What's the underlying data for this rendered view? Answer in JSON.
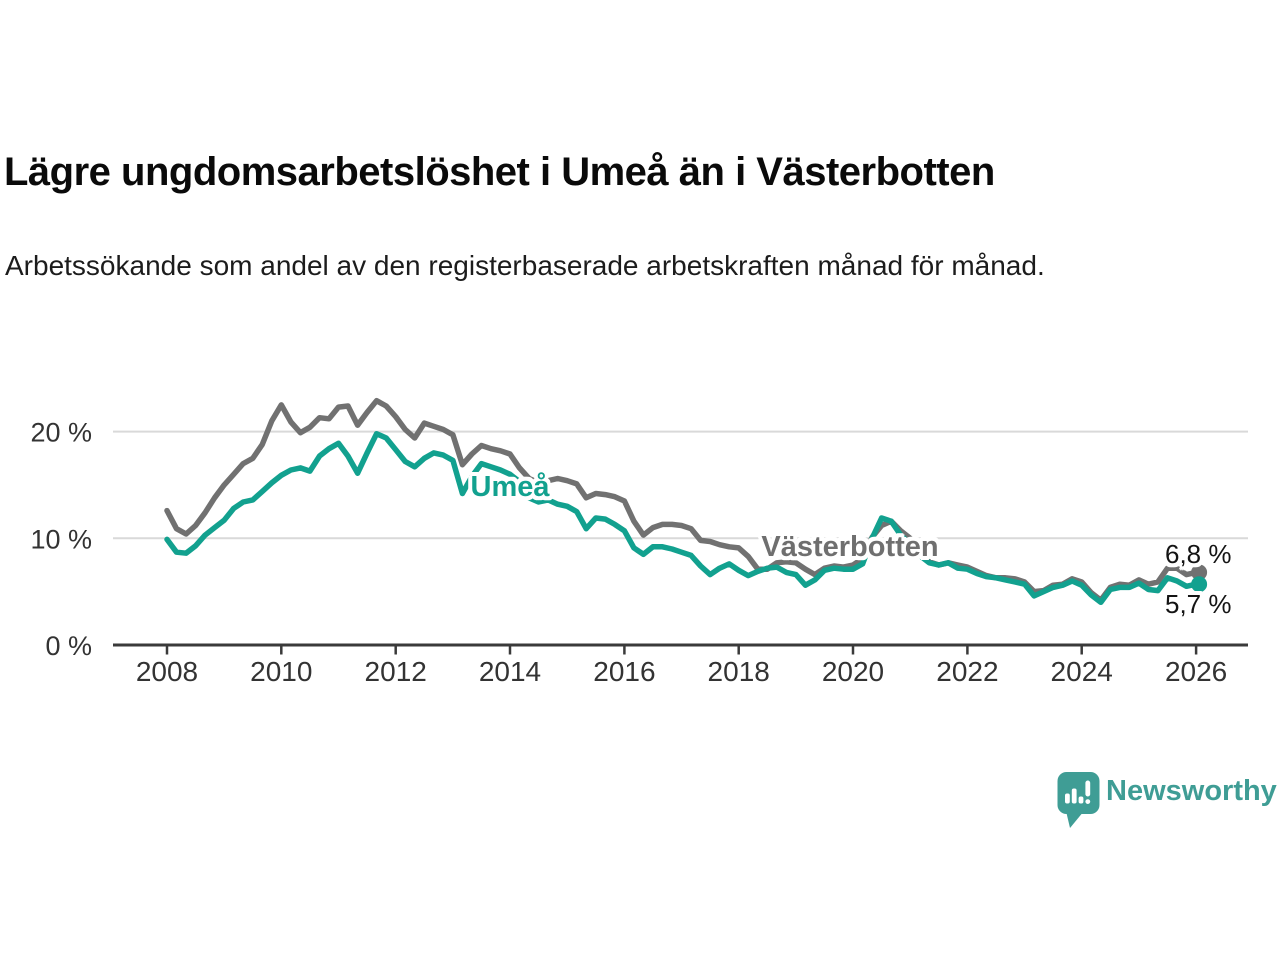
{
  "header": {
    "title": "Lägre ungdomsarbetslöshet i Umeå än i Västerbotten",
    "subtitle": "Arbetssökande som andel av den registerbaserade arbetskraften månad för månad."
  },
  "footer": {
    "brand": "Newsworthy",
    "logo_icon": "newsworthy-speech-bubble-bar-chart-icon"
  },
  "colors": {
    "umea_line": "#12a18f",
    "vasterbotten_line": "#717171",
    "axis": "#3a3a3a",
    "gridline": "#d9d9d9",
    "tick_text": "#333333",
    "brand_teal": "#3f9d95"
  },
  "chart_data": {
    "type": "line",
    "title": "Lägre ungdomsarbetslöshet i Umeå än i Västerbotten",
    "subtitle": "Arbetssökande som andel av den registerbaserade arbetskraften månad för månad.",
    "unit": "%",
    "x_start": 2008,
    "x_step_years": 0.1666667,
    "x_axis": {
      "ticks": [
        {
          "value": 2008,
          "label": "2008"
        },
        {
          "value": 2010,
          "label": "2010"
        },
        {
          "value": 2012,
          "label": "2012"
        },
        {
          "value": 2014,
          "label": "2014"
        },
        {
          "value": 2016,
          "label": "2016"
        },
        {
          "value": 2018,
          "label": "2018"
        },
        {
          "value": 2020,
          "label": "2020"
        },
        {
          "value": 2022,
          "label": "2022"
        },
        {
          "value": 2024,
          "label": "2024"
        },
        {
          "value": 2026,
          "label": "2026"
        }
      ]
    },
    "y_axis": {
      "ticks": [
        {
          "value": 0,
          "label": "0 %"
        },
        {
          "value": 10,
          "label": "10 %"
        },
        {
          "value": 20,
          "label": "20 %"
        }
      ],
      "range": [
        0,
        24
      ],
      "grid": true
    },
    "legend_position": "inline-labels",
    "series": [
      {
        "name": "Västerbotten",
        "inline_label": "Västerbotten",
        "end_label": "6,8 %",
        "end_value": 6.8,
        "color": "#717171",
        "values": [
          12.6,
          10.9,
          10.4,
          11.2,
          12.4,
          13.8,
          15.0,
          16.0,
          17.0,
          17.5,
          18.8,
          21.0,
          22.5,
          20.9,
          19.9,
          20.4,
          21.3,
          21.2,
          22.3,
          22.4,
          20.6,
          21.8,
          22.9,
          22.4,
          21.4,
          20.2,
          19.4,
          20.8,
          20.5,
          20.2,
          19.7,
          16.9,
          17.9,
          18.7,
          18.4,
          18.2,
          17.9,
          16.6,
          15.6,
          15.2,
          15.4,
          15.6,
          15.4,
          15.1,
          13.8,
          14.2,
          14.1,
          13.9,
          13.5,
          11.6,
          10.3,
          11.0,
          11.3,
          11.3,
          11.2,
          10.9,
          9.8,
          9.7,
          9.4,
          9.2,
          9.1,
          8.3,
          7.1,
          7.1,
          7.7,
          7.8,
          7.7,
          7.1,
          6.6,
          7.2,
          7.4,
          7.3,
          7.5,
          8.1,
          10.1,
          11.2,
          11.6,
          10.7,
          10.0,
          8.9,
          7.8,
          7.5,
          7.7,
          7.5,
          7.3,
          6.9,
          6.5,
          6.3,
          6.3,
          6.2,
          5.9,
          5.0,
          5.1,
          5.6,
          5.7,
          6.2,
          5.9,
          4.9,
          4.2,
          5.4,
          5.7,
          5.6,
          6.1,
          5.7,
          5.9,
          7.2,
          7.2,
          6.6,
          6.8
        ]
      },
      {
        "name": "Umeå",
        "inline_label": "Umeå",
        "end_label": "5,7 %",
        "end_value": 5.7,
        "color": "#12a18f",
        "values": [
          9.9,
          8.7,
          8.6,
          9.3,
          10.3,
          11.0,
          11.7,
          12.8,
          13.4,
          13.6,
          14.4,
          15.2,
          15.9,
          16.4,
          16.6,
          16.3,
          17.7,
          18.4,
          18.9,
          17.7,
          16.1,
          18.0,
          19.8,
          19.4,
          18.3,
          17.2,
          16.7,
          17.5,
          18.0,
          17.8,
          17.3,
          14.2,
          15.8,
          17.0,
          16.7,
          16.4,
          16.0,
          15.3,
          13.8,
          13.4,
          13.6,
          13.2,
          13.0,
          12.5,
          10.9,
          11.9,
          11.8,
          11.3,
          10.7,
          9.1,
          8.5,
          9.2,
          9.2,
          9.0,
          8.7,
          8.4,
          7.4,
          6.6,
          7.2,
          7.6,
          7.0,
          6.5,
          6.9,
          7.2,
          7.3,
          6.8,
          6.6,
          5.6,
          6.1,
          7.0,
          7.2,
          7.1,
          7.1,
          7.6,
          10.0,
          11.9,
          11.6,
          10.3,
          9.4,
          8.4,
          7.7,
          7.5,
          7.7,
          7.2,
          7.1,
          6.7,
          6.4,
          6.3,
          6.1,
          5.9,
          5.7,
          4.6,
          5.0,
          5.4,
          5.6,
          6.0,
          5.6,
          4.7,
          4.0,
          5.2,
          5.4,
          5.4,
          5.8,
          5.2,
          5.1,
          6.3,
          6.0,
          5.5,
          5.7
        ]
      }
    ]
  }
}
